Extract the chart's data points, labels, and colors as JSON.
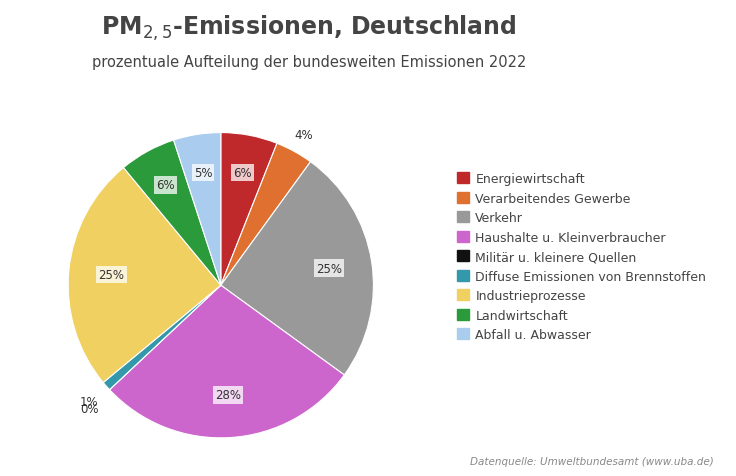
{
  "title_main": "PM$_{2,5}$-Emissionen, Deutschland",
  "title_sub": "prozentuale Aufteilung der bundesweiten Emissionen 2022",
  "source_text": "Datenquelle: Umweltbundesamt (www.uba.de)",
  "labels": [
    "Energiewirtschaft",
    "Verarbeitendes Gewerbe",
    "Verkehr",
    "Haushalte u. Kleinverbraucher",
    "Militär u. kleinere Quellen",
    "Diffuse Emissionen von Brennstoffen",
    "Industrieprozesse",
    "Landwirtschaft",
    "Abfall u. Abwasser"
  ],
  "values": [
    6,
    4,
    25,
    28,
    0,
    1,
    25,
    6,
    5
  ],
  "colors": [
    "#C0292B",
    "#E07030",
    "#999999",
    "#CC66CC",
    "#111111",
    "#3399AA",
    "#F0D060",
    "#2A9A3A",
    "#AACCEE"
  ],
  "pct_labels": [
    "6%",
    "4%",
    "25%",
    "28%",
    "0%",
    "1%",
    "25%",
    "6%",
    "5%"
  ],
  "background_color": "#FFFFFF",
  "title_color": "#444444",
  "label_fontsize": 9,
  "legend_fontsize": 9
}
